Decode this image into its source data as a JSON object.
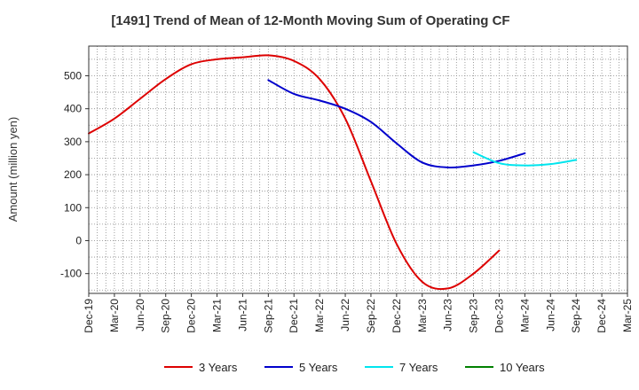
{
  "chart_data": {
    "type": "line",
    "title": "[1491]  Trend of Mean of 12-Month Moving Sum of Operating CF",
    "ylabel": "Amount (million yen)",
    "xlabel": "",
    "ylim": [
      -160,
      590
    ],
    "yticks": [
      -100,
      0,
      100,
      200,
      300,
      400,
      500
    ],
    "x_labels": [
      "Dec-19",
      "Mar-20",
      "Jun-20",
      "Sep-20",
      "Dec-20",
      "Mar-21",
      "Jun-21",
      "Sep-21",
      "Dec-21",
      "Mar-22",
      "Jun-22",
      "Sep-22",
      "Dec-22",
      "Mar-23",
      "Jun-23",
      "Sep-23",
      "Dec-23",
      "Mar-24",
      "Jun-24",
      "Sep-24",
      "Dec-24",
      "Mar-25"
    ],
    "grid": true,
    "legend_position": "bottom",
    "series": [
      {
        "name": "3 Years",
        "color": "#dd0000",
        "start_index": 0,
        "values": [
          325,
          370,
          430,
          490,
          535,
          550,
          556,
          562,
          545,
          490,
          370,
          180,
          -10,
          -125,
          -145,
          -100,
          -30
        ]
      },
      {
        "name": "5 Years",
        "color": "#0000cc",
        "start_index": 7,
        "values": [
          487,
          445,
          425,
          400,
          360,
          295,
          237,
          222,
          228,
          242,
          265
        ]
      },
      {
        "name": "7 Years",
        "color": "#00e5ee",
        "start_index": 15,
        "values": [
          268,
          235,
          228,
          232,
          245
        ]
      },
      {
        "name": "10 Years",
        "color": "#008000",
        "start_index": 0,
        "values": []
      }
    ]
  }
}
